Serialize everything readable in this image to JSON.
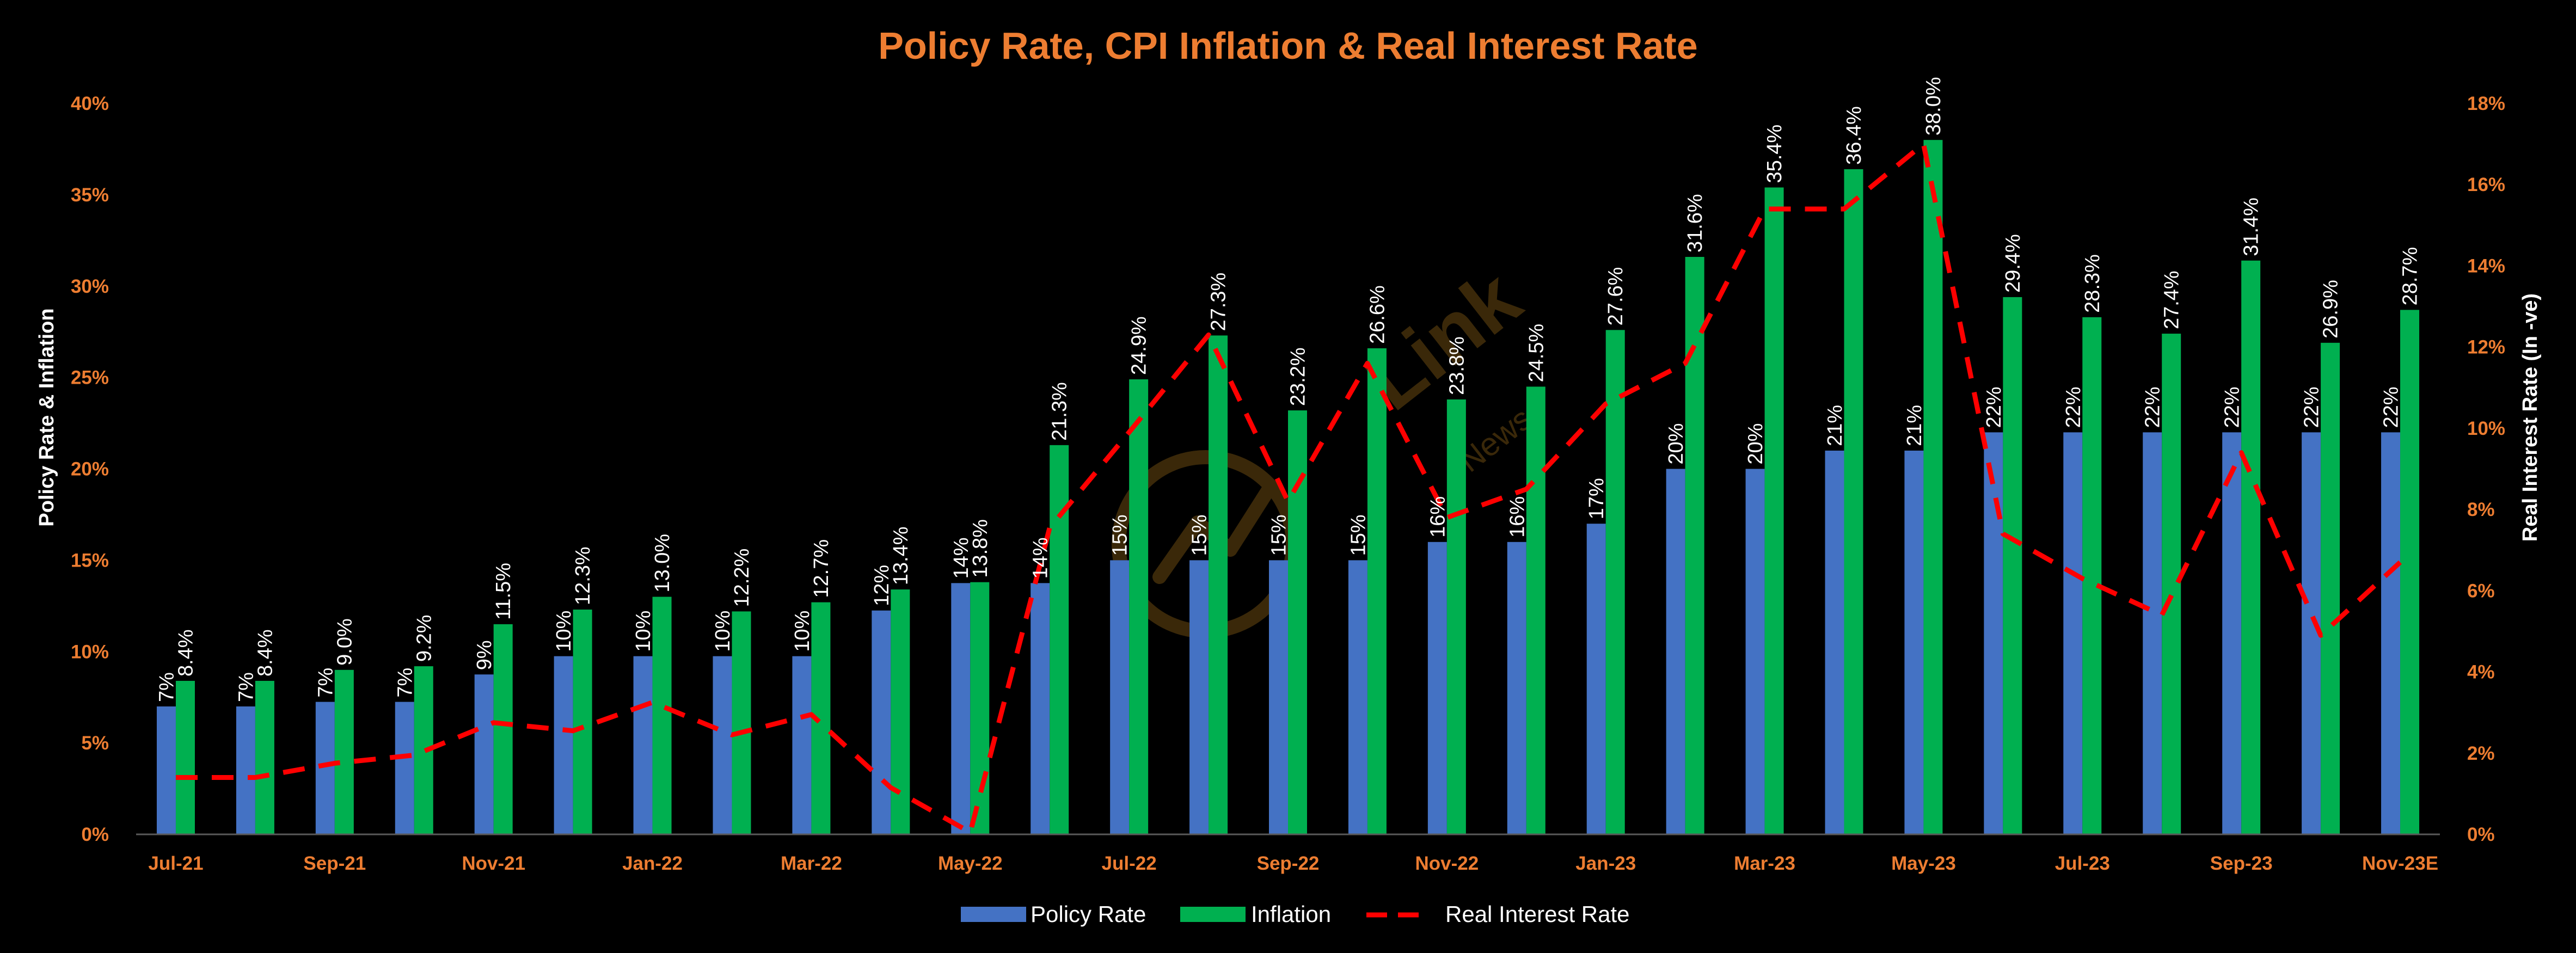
{
  "chart_data": {
    "type": "bar",
    "title": "Policy Rate, CPI Inflation & Real Interest Rate",
    "ylabel": "Policy Rate & Inflation",
    "y2label": "Real Interest Rate (In -ve)",
    "ylim": [
      0,
      40
    ],
    "y2lim": [
      0,
      18
    ],
    "yticks": [
      "0%",
      "5%",
      "10%",
      "15%",
      "20%",
      "25%",
      "30%",
      "35%",
      "40%"
    ],
    "y2ticks": [
      "0%",
      "2%",
      "4%",
      "6%",
      "8%",
      "10%",
      "12%",
      "14%",
      "16%",
      "18%"
    ],
    "x_tick_labels": [
      "Jul-21",
      "Sep-21",
      "Nov-21",
      "Jan-22",
      "Mar-22",
      "May-22",
      "Jul-22",
      "Sep-22",
      "Nov-22",
      "Jan-23",
      "Mar-23",
      "May-23",
      "Jul-23",
      "Sep-23",
      "Nov-23E"
    ],
    "categories": [
      "Jul-21",
      "Aug-21",
      "Sep-21",
      "Oct-21",
      "Nov-21",
      "Dec-21",
      "Jan-22",
      "Feb-22",
      "Mar-22",
      "Apr-22",
      "May-22",
      "Jun-22",
      "Jul-22",
      "Aug-22",
      "Sep-22",
      "Oct-22",
      "Nov-22",
      "Dec-22",
      "Jan-23",
      "Feb-23",
      "Mar-23",
      "Apr-23",
      "May-23",
      "Jun-23",
      "Jul-23",
      "Aug-23",
      "Sep-23",
      "Oct-23",
      "Nov-23E"
    ],
    "series": [
      {
        "name": "Policy Rate",
        "type": "bar",
        "axis": "left",
        "color": "#4472C4",
        "values": [
          7,
          7,
          7.25,
          7.25,
          8.75,
          9.75,
          9.75,
          9.75,
          9.75,
          12.25,
          13.75,
          13.75,
          15,
          15,
          15,
          15,
          16,
          16,
          17,
          20,
          20,
          21,
          21,
          22,
          22,
          22,
          22,
          22,
          22
        ],
        "labels": [
          "7%",
          "7%",
          "7%",
          "7%",
          "9%",
          "10%",
          "10%",
          "10%",
          "10%",
          "12%",
          "14%",
          "14%",
          "15%",
          "15%",
          "15%",
          "15%",
          "16%",
          "16%",
          "17%",
          "20%",
          "20%",
          "21%",
          "21%",
          "22%",
          "22%",
          "22%",
          "22%",
          "22%",
          "22%"
        ]
      },
      {
        "name": "Inflation",
        "type": "bar",
        "axis": "left",
        "color": "#00B050",
        "values": [
          8.4,
          8.4,
          9.0,
          9.2,
          11.5,
          12.3,
          13.0,
          12.2,
          12.7,
          13.4,
          13.8,
          21.3,
          24.9,
          27.3,
          23.2,
          26.6,
          23.8,
          24.5,
          27.6,
          31.6,
          35.4,
          36.4,
          38.0,
          29.4,
          28.3,
          27.4,
          31.4,
          26.9,
          28.7
        ],
        "labels": [
          "8.4%",
          "8.4%",
          "9.0%",
          "9.2%",
          "11.5%",
          "12.3%",
          "13.0%",
          "12.2%",
          "12.7%",
          "13.4%",
          "13.8%",
          "21.3%",
          "24.9%",
          "27.3%",
          "23.2%",
          "26.6%",
          "23.8%",
          "24.5%",
          "27.6%",
          "31.6%",
          "35.4%",
          "36.4%",
          "38.0%",
          "29.4%",
          "28.3%",
          "27.4%",
          "31.4%",
          "26.9%",
          "28.7%"
        ]
      },
      {
        "name": "Real Interest Rate",
        "type": "line",
        "axis": "right",
        "style": "dashed",
        "color": "#FF0000",
        "values": [
          1.4,
          1.4,
          1.75,
          1.95,
          2.75,
          2.55,
          3.25,
          2.45,
          2.95,
          1.15,
          0.05,
          7.55,
          9.9,
          12.3,
          8.2,
          11.6,
          7.8,
          8.5,
          10.6,
          11.6,
          15.4,
          15.4,
          17.0,
          7.4,
          6.3,
          5.4,
          9.4,
          4.9,
          6.7
        ]
      }
    ],
    "legend_position": "bottom",
    "grid": false,
    "watermark": "Link News"
  },
  "colors": {
    "background": "#000000",
    "title": "#ED7D31",
    "tick": "#ED7D31",
    "axis_label": "#FFFFFF",
    "axis_line": "#595959",
    "watermark": "#6B4A12"
  }
}
